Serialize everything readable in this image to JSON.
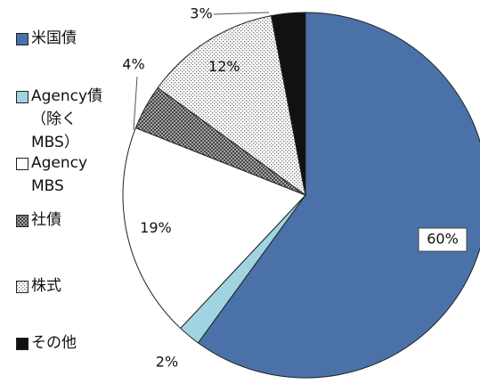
{
  "chart_data": {
    "type": "pie",
    "categories": [
      "米国債",
      "Agency債（除くMBS）",
      "Agency MBS",
      "社債",
      "株式",
      "その他"
    ],
    "values": [
      60,
      2,
      19,
      4,
      12,
      3
    ],
    "value_labels": [
      "60%",
      "2%",
      "19%",
      "4%",
      "12%",
      "3%"
    ],
    "colors": [
      "#4a72a9",
      "#9fd4e0",
      "#ffffff",
      "#555555",
      "#d0d0d0",
      "#111111"
    ]
  }
}
